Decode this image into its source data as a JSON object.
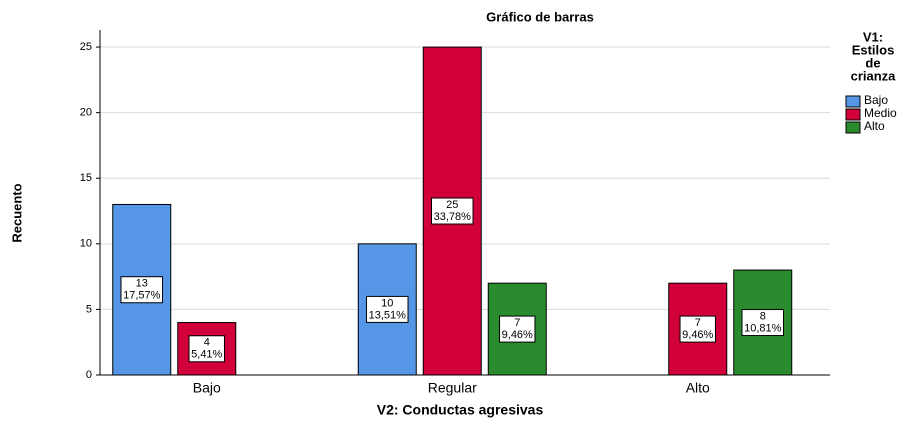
{
  "chart_data": {
    "type": "bar",
    "title": "Gráfico de barras",
    "x_label": "V2: Conductas agresivas",
    "y_label": "Recuento",
    "legend_title": [
      "V1:",
      "Estilos",
      "de",
      "crianza"
    ],
    "categories": [
      "Bajo",
      "Regular",
      "Alto"
    ],
    "series": [
      {
        "name": "Bajo",
        "color": "#5596e6",
        "values": [
          13,
          10,
          null
        ],
        "percent_labels": [
          "17,57%",
          "13,51%",
          null
        ]
      },
      {
        "name": "Medio",
        "color": "#d2003a",
        "values": [
          4,
          25,
          7
        ],
        "percent_labels": [
          "5,41%",
          "33,78%",
          "9,46%"
        ]
      },
      {
        "name": "Alto",
        "color": "#2a8a2e",
        "values": [
          null,
          7,
          8
        ],
        "percent_labels": [
          null,
          "9,46%",
          "10,81%"
        ]
      }
    ],
    "ylim": [
      0,
      26.3
    ],
    "yticks": [
      0,
      5,
      10,
      15,
      20,
      25
    ],
    "grid": true,
    "legend": "right"
  }
}
